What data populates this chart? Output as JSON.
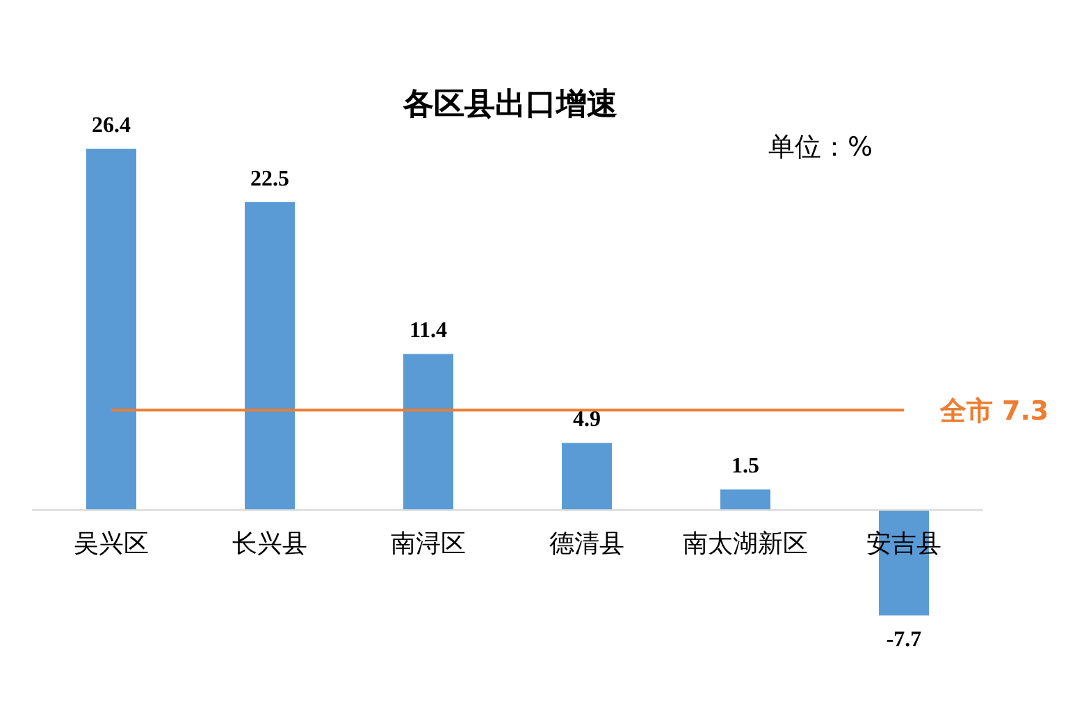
{
  "chart_data": {
    "type": "bar",
    "title": "各区县出口增速",
    "annotations": [
      "单位：%"
    ],
    "categories": [
      "吴兴区",
      "长兴县",
      "南浔区",
      "德清县",
      "南太湖新区",
      "安吉县"
    ],
    "values": [
      26.4,
      22.5,
      11.4,
      4.9,
      1.5,
      -7.7
    ],
    "color": "#5b9bd5",
    "data_labels": true,
    "ref_lines": [
      {
        "axis": "y",
        "value": 7.3,
        "label": "全市 7.3",
        "color": "#ed7d31"
      }
    ]
  }
}
